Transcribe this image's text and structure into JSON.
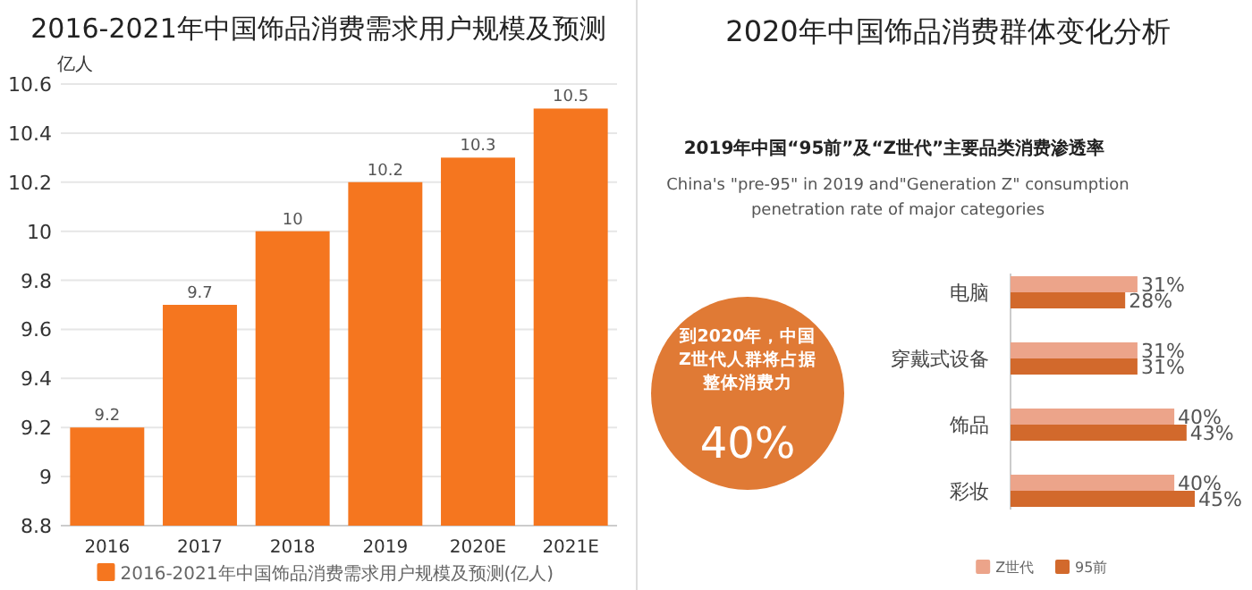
{
  "chart_data": [
    {
      "type": "bar",
      "title": "2016-2021年中国饰品消费需求用户规模及预测",
      "ylabel": "亿人",
      "categories": [
        "2016",
        "2017",
        "2018",
        "2019",
        "2020E",
        "2021E"
      ],
      "series": [
        {
          "name": "2016-2021年中国饰品消费需求用户规模及预测(亿人)",
          "color": "#f5761f",
          "values": [
            9.2,
            9.7,
            10,
            10.2,
            10.3,
            10.5
          ]
        }
      ],
      "ylim": [
        8.8,
        10.6
      ],
      "yticks": [
        8.8,
        9,
        9.2,
        9.4,
        9.6,
        9.8,
        10,
        10.2,
        10.4,
        10.6
      ],
      "grid": "y",
      "data_labels": true,
      "legend": "bottom"
    },
    {
      "type": "bar",
      "orientation": "horizontal",
      "title": "2020年中国饰品消费群体变化分析",
      "subtitle": "2019年中国“95前”及“Z世代”主要品类消费渗透率",
      "annotations": [
        "China's \"pre-95\" in 2019 and\"Generation Z\" consumption penetration rate of major categories",
        "到2020年，中国Z世代人群将占据整体消费力",
        "40%"
      ],
      "categories": [
        "电脑",
        "穿戴式设备",
        "饰品",
        "彩妆"
      ],
      "series": [
        {
          "name": "Z世代",
          "color": "#eca48a",
          "values": [
            31,
            31,
            40,
            40
          ],
          "value_labels": [
            "31%",
            "31%",
            "40%",
            "40%"
          ]
        },
        {
          "name": "95前",
          "color": "#d2692c",
          "values": [
            28,
            31,
            43,
            45
          ],
          "value_labels": [
            "28%",
            "31%",
            "43%",
            "45%"
          ]
        }
      ],
      "legend": "bottom"
    }
  ]
}
